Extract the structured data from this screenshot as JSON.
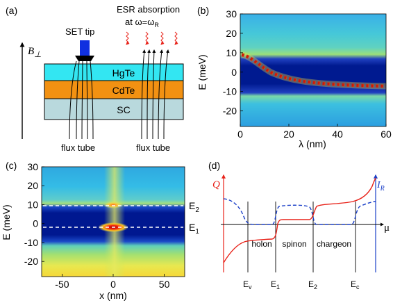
{
  "figure": {
    "panel_a": {
      "label": "(a)",
      "set_tip": "SET tip",
      "esr_line1": "ESR absorption",
      "esr_line2_prefix": "at  ω=ω",
      "esr_line2_sub": "R",
      "field_main": "B",
      "field_sub": "⊥",
      "layers": [
        {
          "name": "HgTe",
          "color": "#33e6f2"
        },
        {
          "name": "CdTe",
          "color": "#f29112"
        },
        {
          "name": "SC",
          "color": "#b9d9dd"
        }
      ],
      "flux_tube_left": "flux tube",
      "flux_tube_right": "flux tube"
    },
    "panel_b": {
      "label": "(b)",
      "ylabel": "E (meV)",
      "xlabel": "λ (nm)",
      "xticks": [
        "0",
        "20",
        "40",
        "60"
      ],
      "yticks": [
        "30",
        "20",
        "10",
        "0",
        "-10",
        "-20"
      ]
    },
    "panel_c": {
      "label": "(c)",
      "ylabel": "E (meV)",
      "xlabel": "x (nm)",
      "xticks": [
        "-50",
        "0",
        "50"
      ],
      "yticks": [
        "30",
        "20",
        "10",
        "0",
        "-10",
        "-20"
      ],
      "level_e2_main": "E",
      "level_e2_sub": "2",
      "level_e1_main": "E",
      "level_e1_sub": "1"
    },
    "panel_d": {
      "label": "(d)",
      "q_label": "Q",
      "ir_main": "I",
      "ir_sub": "R",
      "mu_label": "μ",
      "regions": [
        "holon",
        "spinon",
        "chargeon"
      ],
      "ticks": [
        {
          "main": "E",
          "sub": "v"
        },
        {
          "main": "E",
          "sub": "1"
        },
        {
          "main": "E",
          "sub": "2"
        },
        {
          "main": "E",
          "sub": "c"
        }
      ],
      "q_color": "#e8231a",
      "ir_color": "#1a3fc8"
    }
  },
  "chart_data": [
    {
      "type": "heatmap",
      "panel": "(b)",
      "xlabel": "λ (nm)",
      "ylabel": "E (meV)",
      "xlim": [
        0,
        60
      ],
      "ylim": [
        -28,
        30
      ],
      "gap_edges_meV": [
        -10,
        10
      ],
      "edge_state": {
        "lambda_nm": [
          0,
          5,
          10,
          20,
          30,
          40,
          60
        ],
        "E_meV": [
          9,
          6,
          3,
          -1,
          -4,
          -6,
          -8
        ]
      }
    },
    {
      "type": "heatmap",
      "panel": "(c)",
      "xlabel": "x (nm)",
      "ylabel": "E (meV)",
      "xlim": [
        -70,
        70
      ],
      "ylim": [
        -28,
        30
      ],
      "bound_states_meV": {
        "E2": 11,
        "E1": -3
      }
    }
  ]
}
